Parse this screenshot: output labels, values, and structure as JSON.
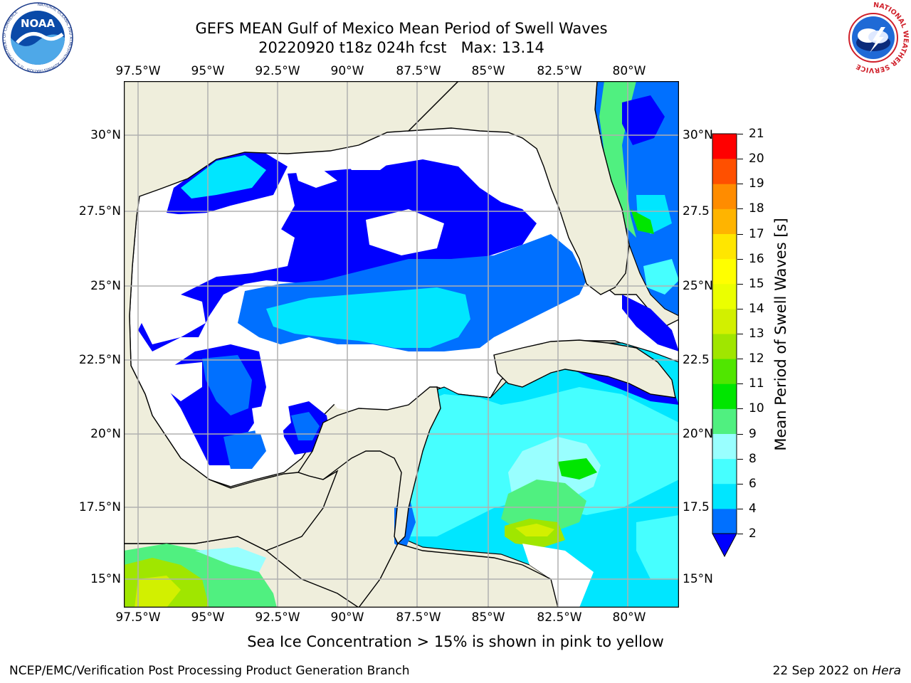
{
  "header": {
    "title_line1": "GEFS MEAN Gulf of Mexico Mean Period of Swell Waves",
    "title_line2": "20220920 t18z 024h fcst   Max: 13.14"
  },
  "logos": {
    "noaa_text": "NOAA",
    "noaa_ring_text": "NATIONAL OCEANIC AND ATMOSPHERIC ADMINISTRATION · U.S. DEPARTMENT OF COMMERCE",
    "nws_ring_text": "NATIONAL WEATHER SERVICE"
  },
  "map": {
    "lon_ticks": [
      "97.5°W",
      "95°W",
      "92.5°W",
      "90°W",
      "87.5°W",
      "85°W",
      "82.5°W",
      "80°W"
    ],
    "lat_ticks_left": [
      "30°N",
      "27.5°N",
      "25°N",
      "22.5°N",
      "20°N",
      "17.5°N",
      "15°N"
    ],
    "lat_ticks_right": [
      "30°N",
      "27.5",
      "25°N",
      "22.5",
      "20°N",
      "17.5",
      "15°N"
    ],
    "land_color": "#efeedc",
    "ocean_missing_color": "#ffffff",
    "grid_color": "#b0b0b0"
  },
  "colorbar": {
    "title": "Mean Period of Swell Waves [s]",
    "levels": [
      "2",
      "4",
      "6",
      "8",
      "9",
      "10",
      "11",
      "12",
      "13",
      "14",
      "15",
      "16",
      "17",
      "18",
      "19",
      "20",
      "21"
    ],
    "colors": [
      "#0070ff",
      "#00e6ff",
      "#46ffff",
      "#99ffff",
      "#50f080",
      "#00e600",
      "#50e600",
      "#a0e600",
      "#d2f000",
      "#ebff00",
      "#ffff00",
      "#ffe600",
      "#ffb400",
      "#ff8c00",
      "#ff5000",
      "#ff2800",
      "#ff0000"
    ],
    "extend_color": "#0000ff"
  },
  "annotation": "Sea Ice Concentration > 15% is shown in pink to yellow",
  "footer": {
    "left": "NCEP/EMC/Verification Post Processing Product Generation Branch",
    "right_prefix": "22 Sep 2022 on ",
    "right_host": "Hera"
  }
}
